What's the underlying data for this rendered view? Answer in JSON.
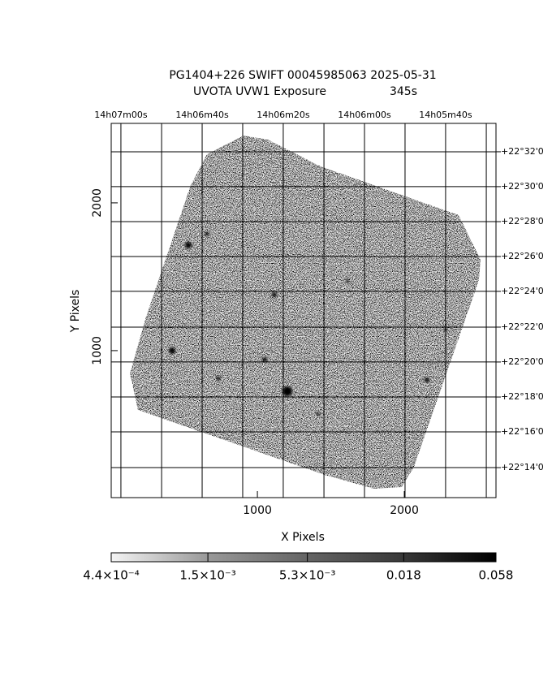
{
  "chart_data": {
    "type": "image",
    "title": "PG1404+226 SWIFT 00045985063 2025-05-31",
    "subtitle": "UVOTA UVW1 Exposure",
    "exposure": "345s",
    "xlabel": "X Pixels",
    "ylabel": "Y Pixels",
    "xlim": [
      5,
      2624
    ],
    "ylim": [
      5,
      2538
    ],
    "xticks": [
      1000,
      2000
    ],
    "yticks": [
      1000,
      2000
    ],
    "x2ticks": [
      {
        "value": 71,
        "label": "14h07m00s"
      },
      348,
      {
        "value": 624,
        "label": "14h06m40s"
      },
      900,
      {
        "value": 1176,
        "label": "14h06m20s"
      },
      1453,
      {
        "value": 1729,
        "label": "14h06m00s"
      },
      2005,
      {
        "value": 2281,
        "label": "14h05m40s"
      },
      2558
    ],
    "y2ticks": [
      {
        "value": 2346,
        "label": "+22°32'0"
      },
      {
        "value": 2110,
        "label": "+22°30'0"
      },
      {
        "value": 1873,
        "label": "+22°28'0"
      },
      {
        "value": 1637,
        "label": "+22°26'0"
      },
      {
        "value": 1401,
        "label": "+22°24'0"
      },
      {
        "value": 1159,
        "label": "+22°22'0"
      },
      {
        "value": 923,
        "label": "+22°20'0"
      },
      {
        "value": 686,
        "label": "+22°18'0"
      },
      {
        "value": 450,
        "label": "+22°16'0"
      },
      {
        "value": 208,
        "label": "+22°14'0"
      }
    ],
    "grid": true,
    "colorbar": {
      "lim": [
        0.00044,
        0.058
      ],
      "log": true,
      "ticks": [
        {
          "value": 0.00044,
          "label": "4.4×10⁻⁴"
        },
        {
          "value": 0.0015,
          "label": "1.5×10⁻³"
        },
        {
          "value": 0.0053,
          "label": "5.3×10⁻³"
        },
        0.018,
        0.058
      ]
    }
  }
}
